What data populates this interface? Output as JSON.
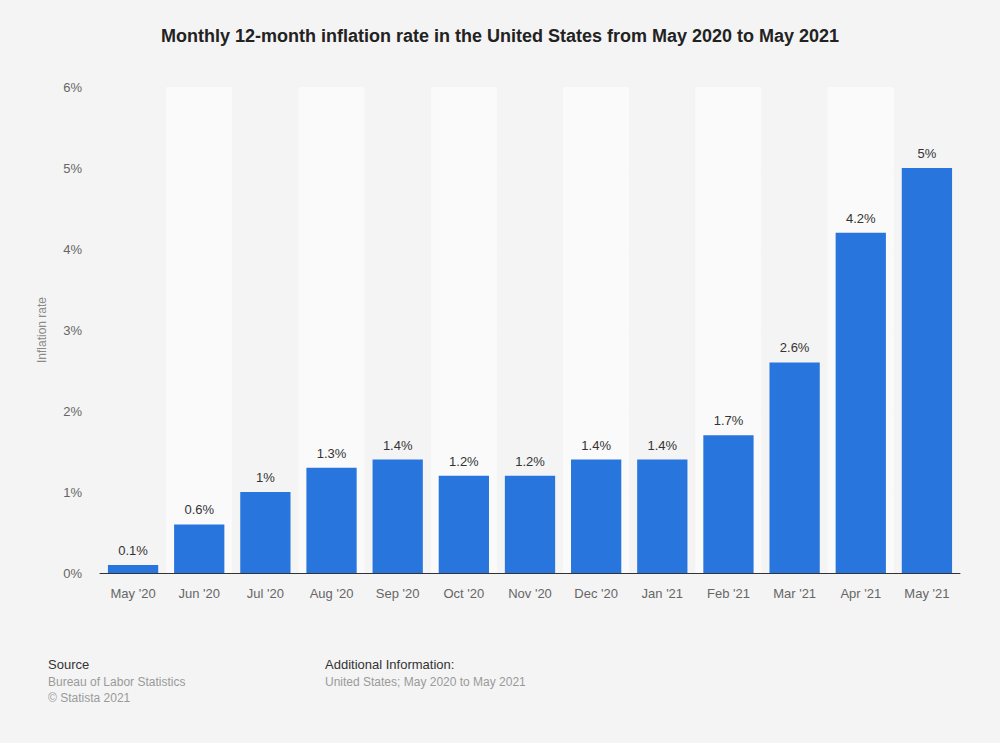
{
  "chart_data": {
    "type": "bar",
    "title": "Monthly 12-month inflation rate in the United States from May 2020 to May 2021",
    "y_label": "Inflation rate",
    "categories": [
      "May '20",
      "Jun '20",
      "Jul '20",
      "Aug '20",
      "Sep '20",
      "Oct '20",
      "Nov '20",
      "Dec '20",
      "Jan '21",
      "Feb '21",
      "Mar '21",
      "Apr '21",
      "May '21"
    ],
    "values": [
      0.1,
      0.6,
      1,
      1.3,
      1.4,
      1.2,
      1.2,
      1.4,
      1.4,
      1.7,
      2.6,
      4.2,
      5
    ],
    "value_labels": [
      "0.1%",
      "0.6%",
      "1%",
      "1.3%",
      "1.4%",
      "1.2%",
      "1.2%",
      "1.4%",
      "1.4%",
      "1.7%",
      "2.6%",
      "4.2%",
      "5%"
    ],
    "color": "#2876dd",
    "ylim": [
      0,
      6
    ],
    "yticks": [
      {
        "value": 0,
        "label": "0%"
      },
      {
        "value": 1,
        "label": "1%"
      },
      {
        "value": 2,
        "label": "2%"
      },
      {
        "value": 3,
        "label": "3%"
      },
      {
        "value": 4,
        "label": "4%"
      },
      {
        "value": 5,
        "label": "5%"
      },
      {
        "value": 6,
        "label": "6%"
      }
    ],
    "grid": true,
    "data_labels": true,
    "annotations": {
      "source_title": "Source",
      "source": "Bureau of Labor Statistics",
      "copyright": "© Statista 2021",
      "info_title": "Additional Information:",
      "info": "United States; May 2020 to May 2021"
    }
  }
}
